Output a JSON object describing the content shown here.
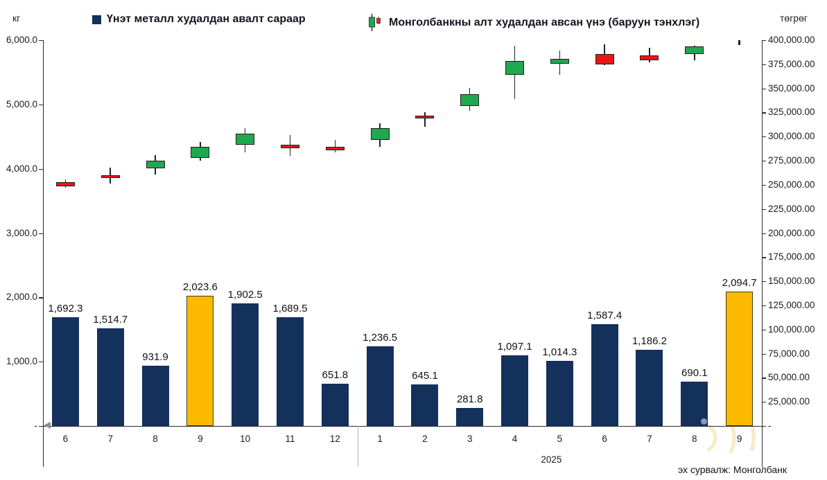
{
  "page": {
    "left_axis_unit": "кг",
    "right_axis_unit": "төгрөг",
    "source": "эх сурвалж: Монголбанк"
  },
  "chart_data": {
    "type": "combo: bar + candlestick",
    "categories": [
      "6",
      "7",
      "8",
      "9",
      "10",
      "11",
      "12",
      "1",
      "2",
      "3",
      "4",
      "5",
      "6",
      "7",
      "8",
      "9"
    ],
    "year_groups": [
      {
        "label": "",
        "from": 0,
        "to": 6
      },
      {
        "label": "2025",
        "from": 7,
        "to": 15
      }
    ],
    "left_axis": {
      "unit": "кг",
      "min": 0,
      "max": 6000,
      "step": 1000,
      "tick_labels": [
        "6,000.0",
        "5,000.0",
        "4,000.0",
        "3,000.0",
        "2,000.0",
        "1,000.0",
        "-"
      ]
    },
    "right_axis": {
      "unit": "төгрөг",
      "min": 0,
      "max": 400000,
      "step": 25000,
      "tick_labels": [
        "400,000.00",
        "375,000.00",
        "350,000.00",
        "325,000.00",
        "300,000.00",
        "275,000.00",
        "250,000.00",
        "225,000.00",
        "200,000.00",
        "175,000.00",
        "150,000.00",
        "125,000.00",
        "100,000.00",
        "75,000.00",
        "50,000.00",
        "25,000.00",
        "-"
      ]
    },
    "bar_series": {
      "name": "Үнэт металл худалдан авалт сараар",
      "axis": "left",
      "values": [
        1692.3,
        1514.7,
        931.9,
        2023.6,
        1902.5,
        1689.5,
        651.8,
        1236.5,
        645.1,
        281.8,
        1097.1,
        1014.3,
        1587.4,
        1186.2,
        690.1,
        2094.7
      ],
      "labels": [
        "1,692.3",
        "1,514.7",
        "931.9",
        "2,023.6",
        "1,902.5",
        "1,689.5",
        "651.8",
        "1,236.5",
        "645.1",
        "281.8",
        "1,097.1",
        "1,014.3",
        "1,587.4",
        "1,186.2",
        "690.1",
        "2,094.7"
      ],
      "highlight_indices": [
        3,
        15
      ]
    },
    "candle_series": {
      "name": "Монголбанкны алт худалдан авсан үнэ (баруун тэнхлэг)",
      "axis": "right",
      "points": [
        {
          "month": "6",
          "open": 252600,
          "high": 255600,
          "low": 246800,
          "close": 248300,
          "direction": "down"
        },
        {
          "month": "7",
          "open": 260200,
          "high": 268100,
          "low": 251300,
          "close": 257300,
          "direction": "down"
        },
        {
          "month": "8",
          "open": 267000,
          "high": 280600,
          "low": 260900,
          "close": 275300,
          "direction": "up"
        },
        {
          "month": "9",
          "open": 277700,
          "high": 294400,
          "low": 275000,
          "close": 289700,
          "direction": "up"
        },
        {
          "month": "10",
          "open": 291300,
          "high": 308800,
          "low": 283600,
          "close": 303300,
          "direction": "up"
        },
        {
          "month": "11",
          "open": 291300,
          "high": 301600,
          "low": 280100,
          "close": 287900,
          "direction": "down"
        },
        {
          "month": "12",
          "open": 289700,
          "high": 296800,
          "low": 283600,
          "close": 285600,
          "direction": "down"
        },
        {
          "month": "1",
          "open": 296700,
          "high": 313600,
          "low": 289700,
          "close": 308800,
          "direction": "up"
        },
        {
          "month": "2",
          "open": 322000,
          "high": 325600,
          "low": 310000,
          "close": 318900,
          "direction": "down"
        },
        {
          "month": "3",
          "open": 332000,
          "high": 350700,
          "low": 326800,
          "close": 344000,
          "direction": "up"
        },
        {
          "month": "4",
          "open": 363800,
          "high": 394200,
          "low": 339100,
          "close": 378600,
          "direction": "up"
        },
        {
          "month": "5",
          "open": 375700,
          "high": 389400,
          "low": 363800,
          "close": 380500,
          "direction": "up"
        },
        {
          "month": "6",
          "open": 385400,
          "high": 395700,
          "low": 374000,
          "close": 375100,
          "direction": "down"
        },
        {
          "month": "7",
          "open": 384200,
          "high": 391900,
          "low": 377000,
          "close": 379400,
          "direction": "down"
        },
        {
          "month": "8",
          "open": 385900,
          "high": 394500,
          "low": 379400,
          "close": 393300,
          "direction": "up"
        },
        {
          "month": "9",
          "open": null,
          "high": 400000,
          "low": 394800,
          "close": null,
          "direction": "neutral"
        }
      ]
    },
    "colors": {
      "bar": "#14315c",
      "bar_highlight": "#fbba00",
      "bar_highlight_border": "#3f3c2a",
      "candle_up": "#1fa84d",
      "candle_down": "#ea1515",
      "candle_border": "#1e1e1e",
      "wick": "#16233b",
      "axis": "#2a2a2a",
      "divider": "#b4b4b4",
      "watermark": "#f5e7bd"
    },
    "legend_position": "top",
    "grid": false
  }
}
